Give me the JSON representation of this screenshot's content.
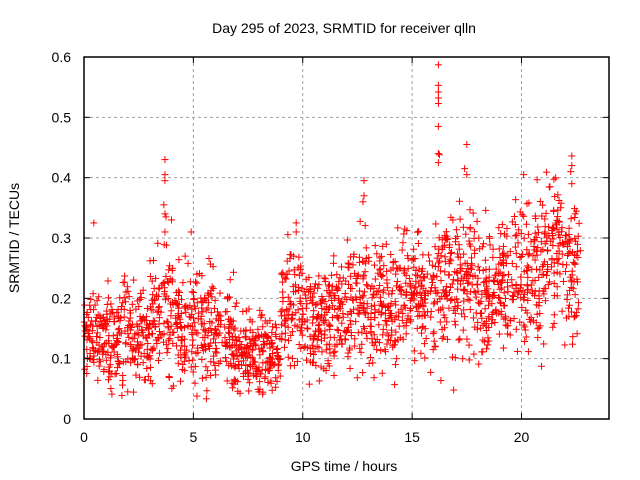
{
  "chart_data": {
    "type": "scatter",
    "title": "Day 295 of 2023, SRMTID for receiver qlln",
    "xlabel": "GPS time / hours",
    "ylabel": "SRMTID / TECUs",
    "xlim": [
      0,
      24
    ],
    "ylim": [
      0,
      0.6
    ],
    "xticks": [
      0,
      5,
      10,
      15,
      20
    ],
    "xtick_labels": [
      "0",
      "5",
      "10",
      "15",
      "20"
    ],
    "yticks": [
      0,
      0.1,
      0.2,
      0.3,
      0.4,
      0.5,
      0.6
    ],
    "ytick_labels": [
      "0",
      "0.1",
      "0.2",
      "0.3",
      "0.4",
      "0.5",
      "0.6"
    ],
    "grid": true,
    "legend": "none",
    "marker": "plus",
    "color": "#ff0000",
    "series": [
      {
        "name": "SRMTID",
        "hourly_bins": [
          {
            "start": 0,
            "end": 1,
            "mean": 0.135,
            "low": 0.06,
            "high": 0.21
          },
          {
            "start": 1,
            "end": 2,
            "mean": 0.135,
            "low": 0.05,
            "high": 0.23
          },
          {
            "start": 2,
            "end": 3,
            "mean": 0.14,
            "low": 0.06,
            "high": 0.22
          },
          {
            "start": 3,
            "end": 4,
            "mean": 0.17,
            "low": 0.08,
            "high": 0.28
          },
          {
            "start": 4,
            "end": 5,
            "mean": 0.15,
            "low": 0.06,
            "high": 0.25
          },
          {
            "start": 5,
            "end": 6,
            "mean": 0.15,
            "low": 0.06,
            "high": 0.26
          },
          {
            "start": 6,
            "end": 7,
            "mean": 0.13,
            "low": 0.06,
            "high": 0.23
          },
          {
            "start": 7,
            "end": 8,
            "mean": 0.115,
            "low": 0.06,
            "high": 0.19
          },
          {
            "start": 8,
            "end": 9,
            "mean": 0.105,
            "low": 0.04,
            "high": 0.17
          },
          {
            "start": 9,
            "end": 10,
            "mean": 0.19,
            "low": 0.1,
            "high": 0.3
          },
          {
            "start": 10,
            "end": 11,
            "mean": 0.16,
            "low": 0.07,
            "high": 0.26
          },
          {
            "start": 11,
            "end": 12,
            "mean": 0.17,
            "low": 0.08,
            "high": 0.26
          },
          {
            "start": 12,
            "end": 13,
            "mean": 0.2,
            "low": 0.09,
            "high": 0.32
          },
          {
            "start": 13,
            "end": 14,
            "mean": 0.195,
            "low": 0.07,
            "high": 0.29
          },
          {
            "start": 14,
            "end": 15,
            "mean": 0.21,
            "low": 0.1,
            "high": 0.3
          },
          {
            "start": 15,
            "end": 16,
            "mean": 0.2,
            "low": 0.1,
            "high": 0.3
          },
          {
            "start": 16,
            "end": 17,
            "mean": 0.21,
            "low": 0.07,
            "high": 0.32
          },
          {
            "start": 17,
            "end": 18,
            "mean": 0.23,
            "low": 0.1,
            "high": 0.34
          },
          {
            "start": 18,
            "end": 19,
            "mean": 0.22,
            "low": 0.1,
            "high": 0.32
          },
          {
            "start": 19,
            "end": 20,
            "mean": 0.23,
            "low": 0.11,
            "high": 0.34
          },
          {
            "start": 20,
            "end": 21,
            "mean": 0.24,
            "low": 0.11,
            "high": 0.36
          },
          {
            "start": 21,
            "end": 22,
            "mean": 0.27,
            "low": 0.13,
            "high": 0.38
          },
          {
            "start": 22,
            "end": 22.7,
            "mean": 0.24,
            "low": 0.12,
            "high": 0.33
          }
        ],
        "points_per_hour": 90,
        "notable_points": [
          {
            "x": 0.45,
            "y": 0.325
          },
          {
            "x": 3.7,
            "y": 0.43
          },
          {
            "x": 3.7,
            "y": 0.405
          },
          {
            "x": 3.7,
            "y": 0.395
          },
          {
            "x": 3.65,
            "y": 0.355
          },
          {
            "x": 3.7,
            "y": 0.34
          },
          {
            "x": 3.75,
            "y": 0.335
          },
          {
            "x": 4.0,
            "y": 0.33
          },
          {
            "x": 3.7,
            "y": 0.31
          },
          {
            "x": 4.9,
            "y": 0.31
          },
          {
            "x": 9.7,
            "y": 0.325
          },
          {
            "x": 9.7,
            "y": 0.31
          },
          {
            "x": 12.8,
            "y": 0.395
          },
          {
            "x": 12.8,
            "y": 0.37
          },
          {
            "x": 12.75,
            "y": 0.36
          },
          {
            "x": 16.2,
            "y": 0.587
          },
          {
            "x": 16.2,
            "y": 0.553
          },
          {
            "x": 16.2,
            "y": 0.542
          },
          {
            "x": 16.2,
            "y": 0.532
          },
          {
            "x": 16.2,
            "y": 0.523
          },
          {
            "x": 16.2,
            "y": 0.485
          },
          {
            "x": 16.2,
            "y": 0.44
          },
          {
            "x": 16.25,
            "y": 0.438
          },
          {
            "x": 16.2,
            "y": 0.425
          },
          {
            "x": 17.5,
            "y": 0.455
          },
          {
            "x": 17.4,
            "y": 0.415
          },
          {
            "x": 17.5,
            "y": 0.405
          },
          {
            "x": 20.1,
            "y": 0.405
          },
          {
            "x": 21.3,
            "y": 0.385
          },
          {
            "x": 22.3,
            "y": 0.436
          },
          {
            "x": 22.3,
            "y": 0.42
          },
          {
            "x": 22.25,
            "y": 0.41
          },
          {
            "x": 22.3,
            "y": 0.39
          },
          {
            "x": 14.2,
            "y": 0.057
          },
          {
            "x": 16.9,
            "y": 0.048
          },
          {
            "x": 2.0,
            "y": 0.045
          },
          {
            "x": 8.0,
            "y": 0.045
          }
        ]
      }
    ]
  }
}
